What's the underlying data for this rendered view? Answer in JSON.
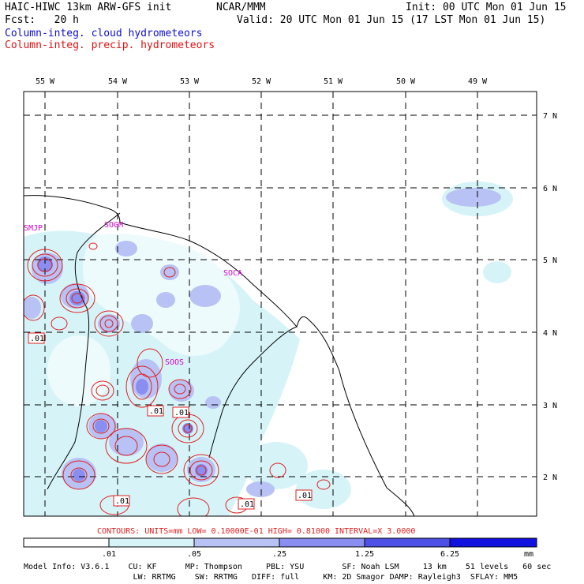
{
  "header": {
    "model": "HAIC-HIWC 13km ARW-GFS init",
    "org": "NCAR/MMM",
    "init": "Init: 00 UTC Mon 01 Jun 15",
    "fcst": "Fcst:   20 h",
    "valid": "Valid: 20 UTC Mon 01 Jun 15 (17 LST Mon 01 Jun 15)",
    "field1": "Column-integ. cloud hydrometeors",
    "field2": "Column-integ. precip. hydrometeors",
    "field1_color": "#1010d0",
    "field2_color": "#e01010"
  },
  "map": {
    "lon_labels": [
      "55 W",
      "54 W",
      "53 W",
      "52 W",
      "51 W",
      "50 W",
      "49 W"
    ],
    "lat_labels": [
      "7 N",
      "6 N",
      "5 N",
      "4 N",
      "3 N",
      "2 N"
    ],
    "station_labels": [
      "SMJP",
      "SOGM",
      "SOCA",
      "SOOS"
    ],
    "station_color": "#d000d0",
    "contour_labels": [
      ".01",
      ".01",
      ".01",
      ".01",
      ".01",
      ".01"
    ],
    "contour_color": "#e02020"
  },
  "contour_info": "CONTOURS:  UNITS=mm  LOW= 0.10000E-01  HIGH= 0.81000      INTERVAL=X  3.0000",
  "colorbar": {
    "ticks": [
      ".01",
      ".05",
      ".25",
      "1.25",
      "6.25"
    ],
    "unit": "mm",
    "colors": [
      "#ffffff",
      "#d6f4f8",
      "#b8c2f4",
      "#8a8ef0",
      "#4e50e6",
      "#1212e0"
    ]
  },
  "model_info": {
    "line1": "Model Info: V3.6.1    CU: KF      MP: Thompson     PBL: YSU        SF: Noah LSM     13 km    51 levels   60 sec",
    "line2": "                       LW: RRTMG    SW: RRTMG   DIFF: full     KM: 2D Smagor DAMP: Rayleigh3  SFLAY: MM5"
  }
}
